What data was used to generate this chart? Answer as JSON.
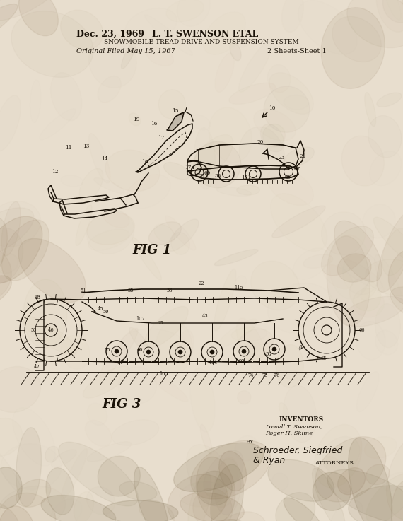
{
  "bg_color": "#e8dece",
  "title_date": "Dec. 23, 1969",
  "title_inventor": "L. T. SWENSON ETAL",
  "title_patent": "SNOWMOBILE TREAD DRIVE AND SUSPENSION SYSTEM",
  "filed_left": "Original Filed May 15, 1967",
  "filed_right": "2 Sheets-Sheet 1",
  "fig1_label": "FIG 1",
  "fig3_label": "FIG 3",
  "inventors_label": "INVENTORS",
  "inventors_names": "Lowell T. Swenson,\nRoger H. Skime",
  "by_label": "BY",
  "attorney_sig": "Schroeder, Siegfried\n& Ryan",
  "attorney_label": "ATTORNEYS",
  "ink_color": "#1a1208",
  "fig_width": 5.7,
  "fig_height": 7.37,
  "dpi": 100
}
